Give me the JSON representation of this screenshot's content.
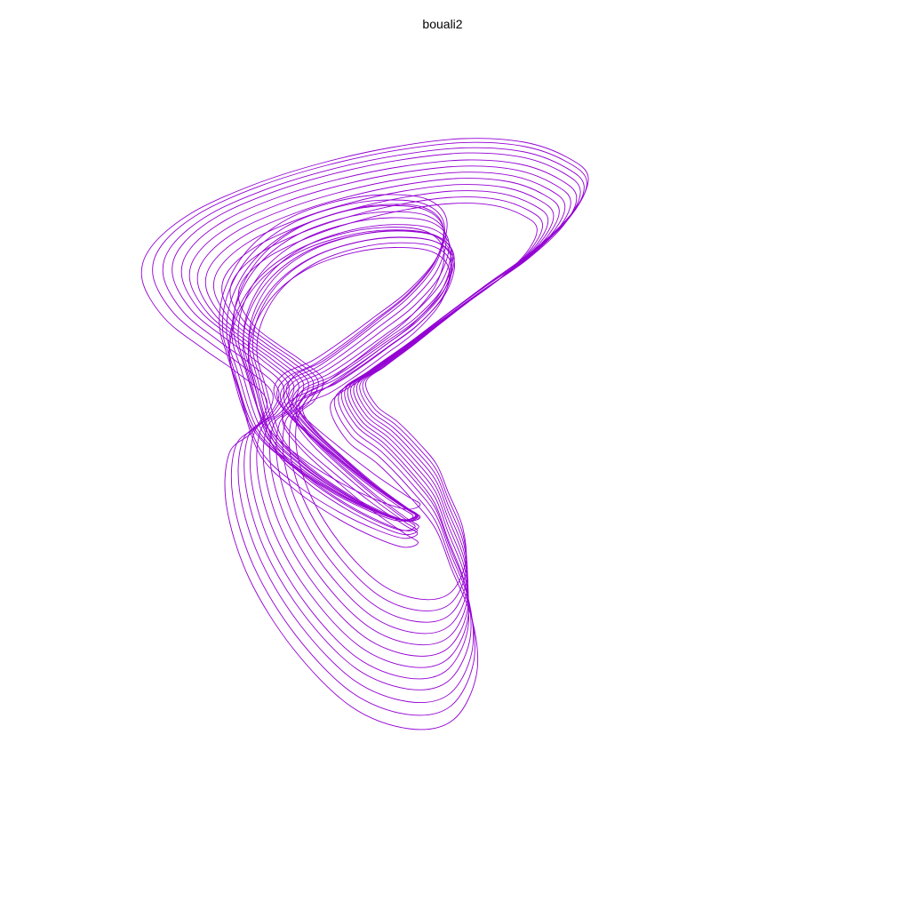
{
  "chart_data": {
    "type": "line",
    "title": "bouali2",
    "xlabel": "",
    "ylabel": "",
    "axes_visible": false,
    "grid": false,
    "legend": "none",
    "series": [
      {
        "color": "#9400d3",
        "description_free_trajectory": true,
        "x": [
          0.05,
          0.23,
          0.36,
          0.38,
          0.27,
          0.1,
          -0.1,
          -0.32,
          -0.52,
          -0.7,
          -0.84,
          -0.94,
          -1.0,
          -1.0,
          -0.93,
          -0.8,
          -0.62,
          -0.4,
          -0.15,
          0.1,
          0.33,
          0.52,
          0.66,
          0.73,
          0.73,
          0.65,
          0.5
        ],
        "y": [
          -0.6,
          -0.45,
          -0.25,
          -0.05,
          0.1,
          0.2,
          0.28,
          0.35,
          0.42,
          0.5,
          0.6,
          0.7,
          0.8,
          0.88,
          0.94,
          0.98,
          1.0,
          1.0,
          0.98,
          0.95,
          0.9,
          0.82,
          0.7,
          0.55,
          0.4,
          0.25,
          0.1
        ]
      }
    ]
  }
}
